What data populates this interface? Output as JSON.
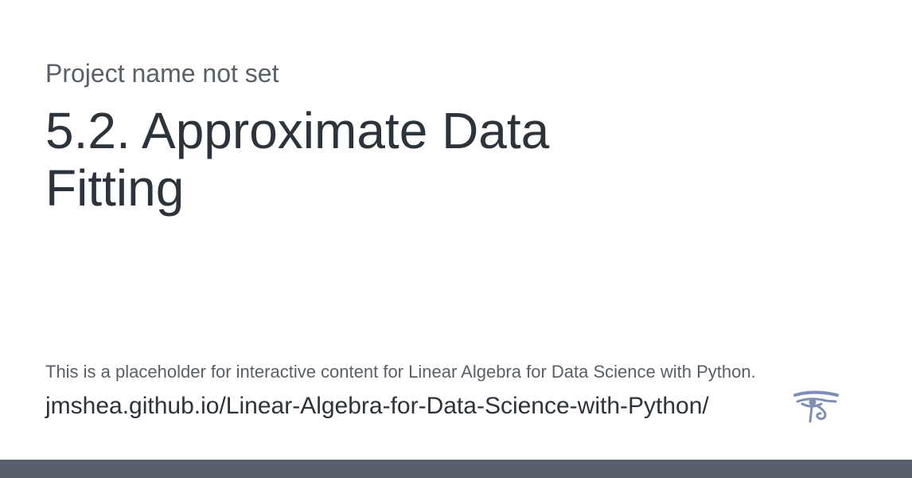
{
  "header": {
    "project_name": "Project name not set",
    "title": "5.2. Approximate Data Fitting"
  },
  "footer": {
    "description": "This is a placeholder for interactive content for Linear Algebra for Data Science with Python.",
    "url": "jmshea.github.io/Linear-Algebra-for-Data-Science-with-Python/",
    "logo_icon": "eye-of-horus-icon",
    "bar_color": "#5a606b"
  },
  "colors": {
    "title_text": "#2d333b",
    "secondary_text": "#5a6068",
    "logo": "#7f8fb4"
  }
}
